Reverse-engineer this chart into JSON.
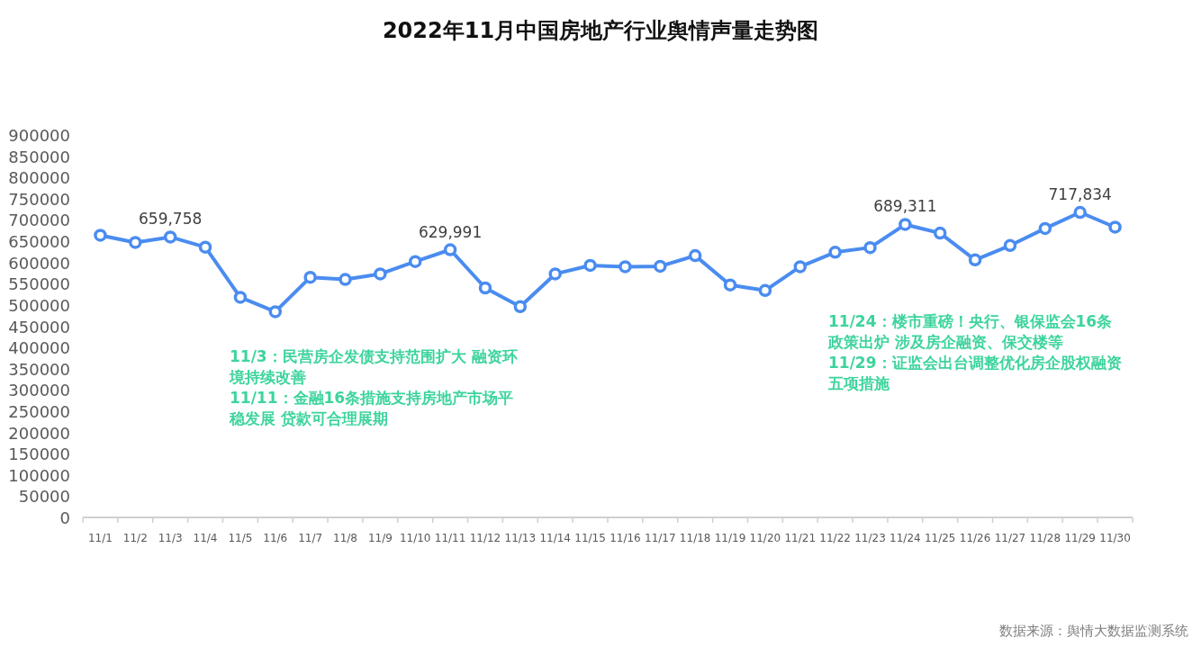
{
  "chart_data": {
    "type": "line",
    "title": "2022年11月中国房地产行业舆情声量走势图",
    "categories": [
      "11/1",
      "11/2",
      "11/3",
      "11/4",
      "11/5",
      "11/6",
      "11/7",
      "11/8",
      "11/9",
      "11/10",
      "11/11",
      "11/12",
      "11/13",
      "11/14",
      "11/15",
      "11/16",
      "11/17",
      "11/18",
      "11/19",
      "11/20",
      "11/21",
      "11/22",
      "11/23",
      "11/24",
      "11/25",
      "11/26",
      "11/27",
      "11/28",
      "11/29",
      "11/30"
    ],
    "series": [
      {
        "color": "#4a8cf0",
        "values": [
          664000,
          647000,
          659758,
          636000,
          518000,
          484000,
          565000,
          560000,
          573000,
          602000,
          629991,
          540000,
          496000,
          573000,
          593000,
          590000,
          591000,
          616000,
          547000,
          534000,
          590000,
          624000,
          635000,
          689311,
          669000,
          606000,
          640000,
          680000,
          717834,
          683000
        ],
        "value_labels": [
          null,
          null,
          "659,758",
          null,
          null,
          null,
          null,
          null,
          null,
          null,
          "629,991",
          null,
          null,
          null,
          null,
          null,
          null,
          null,
          null,
          null,
          null,
          null,
          null,
          "689,311",
          null,
          null,
          null,
          null,
          "717,834",
          null
        ]
      }
    ],
    "ylim": [
      0,
      900000
    ],
    "yticks": [
      0,
      50000,
      100000,
      150000,
      200000,
      250000,
      300000,
      350000,
      400000,
      450000,
      500000,
      550000,
      600000,
      650000,
      700000,
      750000,
      800000,
      850000,
      900000
    ],
    "marker": "circle",
    "line_style": "solid",
    "annotations": [
      "11/3：民营房企发债支持范围扩大 融资环境持续改善",
      "11/11：金融16条措施支持房地产市场平稳发展 贷款可合理展期",
      "11/24：楼市重磅！央行、银保监会16条政策出炉 涉及房企融资、保交楼等",
      "11/29：证监会出台调整优化房企股权融资五项措施",
      "数据来源：舆情大数据监测系统"
    ]
  }
}
